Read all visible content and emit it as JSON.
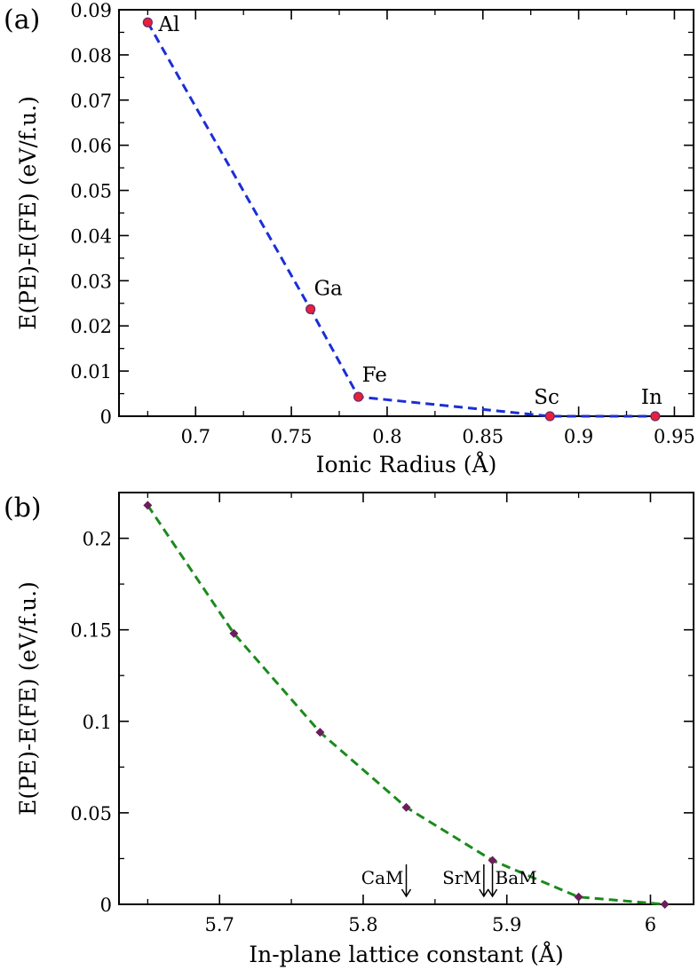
{
  "chart_data": [
    {
      "panel": "(a)",
      "type": "line",
      "xlabel": "Ionic Radius (Å)",
      "ylabel": "E(PE)-E(FE) (eV/f.u.)",
      "xlim": [
        0.66,
        0.96
      ],
      "ylim": [
        0,
        0.09
      ],
      "xticks": [
        0.7,
        0.75,
        0.8,
        0.85,
        0.9,
        0.95
      ],
      "xtick_labels": [
        "0.7",
        "0.75",
        "0.8",
        "0.85",
        "0.9",
        "0.95"
      ],
      "yticks": [
        0,
        0.01,
        0.02,
        0.03,
        0.04,
        0.05,
        0.06,
        0.07,
        0.08,
        0.09
      ],
      "ytick_labels": [
        "0",
        "0.01",
        "0.02",
        "0.03",
        "0.04",
        "0.05",
        "0.06",
        "0.07",
        "0.08",
        "0.09"
      ],
      "grid": false,
      "line_style": "dashed",
      "line_color": "#1a2ed6",
      "marker": "circle",
      "marker_color": "#e8203a",
      "marker_edge": "#6b2a6a",
      "points": [
        {
          "x": 0.675,
          "y": 0.0872,
          "label": "Al"
        },
        {
          "x": 0.76,
          "y": 0.0237,
          "label": "Ga"
        },
        {
          "x": 0.785,
          "y": 0.0043,
          "label": "Fe"
        },
        {
          "x": 0.885,
          "y": 0.0,
          "label": "Sc"
        },
        {
          "x": 0.94,
          "y": 0.0,
          "label": "In"
        }
      ]
    },
    {
      "panel": "(b)",
      "type": "line",
      "xlabel": "In-plane lattice constant (Å)",
      "ylabel": "E(PE)-E(FE) (eV/f.u.)",
      "xlim": [
        5.63,
        6.03
      ],
      "ylim": [
        0,
        0.225
      ],
      "xticks": [
        5.7,
        5.8,
        5.9,
        6.0
      ],
      "xtick_labels": [
        "5.7",
        "5.8",
        "5.9",
        "6"
      ],
      "yticks": [
        0,
        0.05,
        0.1,
        0.15,
        0.2
      ],
      "ytick_labels": [
        "0",
        "0.05",
        "0.1",
        "0.15",
        "0.2"
      ],
      "grid": false,
      "line_style": "dashed",
      "line_color": "#1b8a1b",
      "marker": "diamond",
      "marker_color": "#6b1e5a",
      "points": [
        {
          "x": 5.65,
          "y": 0.218
        },
        {
          "x": 5.71,
          "y": 0.148
        },
        {
          "x": 5.77,
          "y": 0.094
        },
        {
          "x": 5.83,
          "y": 0.053
        },
        {
          "x": 5.89,
          "y": 0.024
        },
        {
          "x": 5.95,
          "y": 0.004
        },
        {
          "x": 6.01,
          "y": 0.0
        }
      ],
      "annotations": [
        {
          "text": "CaM",
          "x": 5.83,
          "side": "left"
        },
        {
          "text": "SrM",
          "x": 5.884,
          "side": "left"
        },
        {
          "text": "BaM",
          "x": 5.89,
          "side": "right"
        }
      ]
    }
  ]
}
